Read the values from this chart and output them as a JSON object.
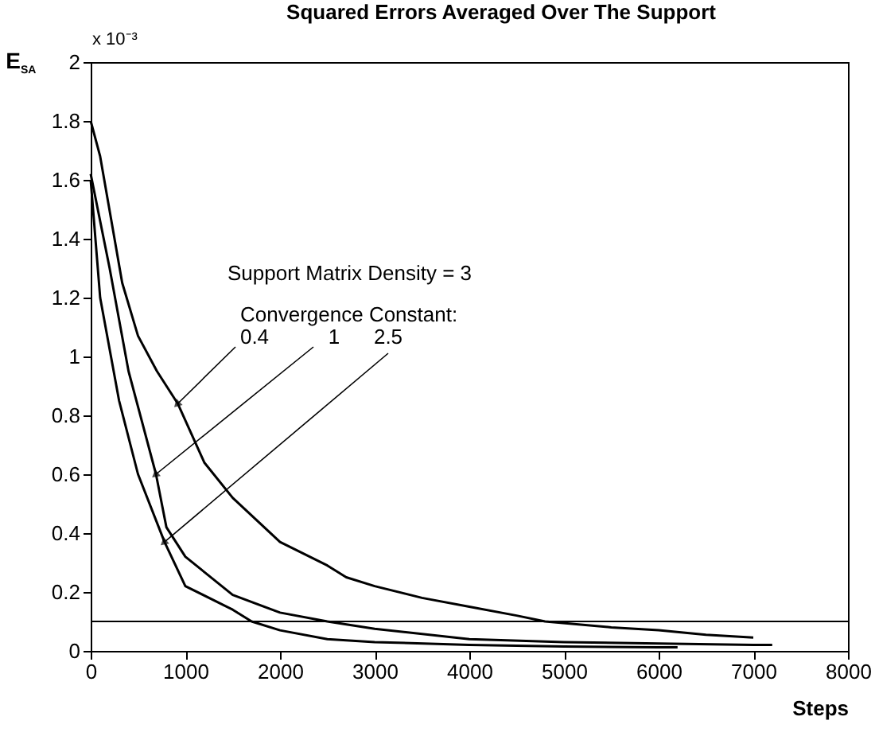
{
  "chart_data": {
    "type": "line",
    "title": "Squared Errors Averaged Over The Support",
    "xlabel": "Steps",
    "ylabel": "E$_{SA}$",
    "xlim": [
      0,
      8000
    ],
    "ylim": [
      0,
      2
    ],
    "xticks": [
      0,
      1000,
      2000,
      3000,
      4000,
      5000,
      6000,
      7000,
      8000
    ],
    "yticks": [
      0,
      0.2,
      0.4,
      0.6,
      0.8,
      1,
      1.2,
      1.4,
      1.6,
      1.8,
      2
    ],
    "grid": false,
    "line_style": "solid",
    "marker": "none",
    "series": [
      {
        "color": "#000000",
        "x": [
          0,
          100,
          333,
          500,
          700,
          920,
          1200,
          1500,
          2000,
          2500,
          2700,
          3000,
          3500,
          4000,
          4500,
          4800,
          5500,
          6000,
          6500,
          7000
        ],
        "values": [
          1.8,
          1.68,
          1.25,
          1.07,
          0.95,
          0.84,
          0.64,
          0.52,
          0.37,
          0.29,
          0.25,
          0.22,
          0.18,
          0.15,
          0.12,
          0.1,
          0.08,
          0.07,
          0.055,
          0.045
        ]
      },
      {
        "color": "#000000",
        "x": [
          0,
          200,
          400,
          690,
          800,
          1000,
          1500,
          2000,
          2500,
          3000,
          4000,
          5000,
          6000,
          7000,
          7200
        ],
        "values": [
          1.62,
          1.3,
          0.95,
          0.6,
          0.42,
          0.32,
          0.19,
          0.13,
          0.1,
          0.075,
          0.04,
          0.03,
          0.025,
          0.02,
          0.02
        ]
      },
      {
        "color": "#000000",
        "x": [
          0,
          100,
          300,
          500,
          780,
          1000,
          1500,
          1700,
          2000,
          2500,
          3000,
          4000,
          5000,
          6000,
          6200
        ],
        "values": [
          1.6,
          1.2,
          0.85,
          0.6,
          0.37,
          0.22,
          0.14,
          0.1,
          0.07,
          0.04,
          0.03,
          0.02,
          0.015,
          0.012,
          0.012
        ]
      }
    ],
    "ref_lines": [
      {
        "axis": "y",
        "value": 0.1,
        "color": "#000000"
      }
    ],
    "annotations": [
      "x 10⁻³",
      "Support Matrix Density = 3",
      "Convergence Constant:",
      {
        "text": "0.4",
        "x": 920,
        "y": 0.84
      },
      {
        "text": "1",
        "x": 690,
        "y": 0.6
      },
      {
        "text": "2.5",
        "x": 780,
        "y": 0.37
      }
    ]
  }
}
